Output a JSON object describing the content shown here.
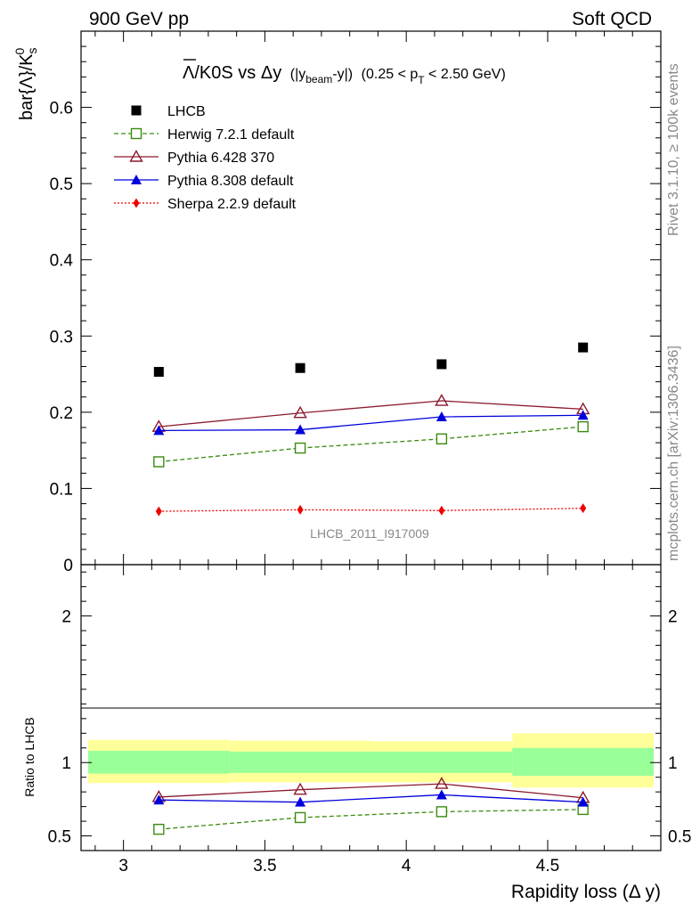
{
  "header": {
    "left": "900 GeV pp",
    "right": "Soft QCD"
  },
  "side": {
    "rivet": "Rivet 3.1.10, ≥ 100k events",
    "mcplots": "mcplots.cern.ch [arXiv:1306.3436]"
  },
  "watermark": "LHCB_2011_I917009",
  "chart_data": [
    {
      "type": "scatter",
      "title_main": "Λ/K0S vs Δy",
      "title_sel_prefix": "(|y",
      "title_sel_sub": "beam",
      "title_sel_suffix": "-y|)",
      "title_range": "(0.25 < p",
      "title_range_sub": "T",
      "title_range_suffix": " < 2.50 GeV)",
      "ylabel": "bar{Λ}/K",
      "ylabel_sup": "0",
      "ylabel_sub": "s",
      "ylim": [
        0,
        0.7
      ],
      "xlim": [
        2.85,
        4.9
      ],
      "yticks": [
        "0",
        "0.1",
        "0.2",
        "0.3",
        "0.4",
        "0.5",
        "0.6"
      ],
      "x": [
        3.125,
        3.625,
        4.125,
        4.625
      ],
      "series": [
        {
          "name": "LHCB",
          "color": "#000000",
          "marker": "square-filled",
          "line": "none",
          "values": [
            0.253,
            0.258,
            0.263,
            0.285
          ]
        },
        {
          "name": "Herwig 7.2.1 default",
          "color": "#3a8a0e",
          "marker": "square-open",
          "line": "dashed",
          "values": [
            0.135,
            0.153,
            0.165,
            0.181
          ]
        },
        {
          "name": "Pythia 6.428 370",
          "color": "#8b1a2e",
          "marker": "triangle-open",
          "line": "solid",
          "values": [
            0.181,
            0.199,
            0.215,
            0.204
          ]
        },
        {
          "name": "Pythia 8.308 default",
          "color": "#0000dd",
          "marker": "triangle-filled",
          "line": "solid",
          "values": [
            0.176,
            0.177,
            0.194,
            0.196
          ]
        },
        {
          "name": "Sherpa 2.2.9 default",
          "color": "#ee0000",
          "marker": "diamond-filled",
          "line": "dotted",
          "values": [
            0.07,
            0.072,
            0.071,
            0.074
          ]
        }
      ],
      "legend_placement": "top-left"
    },
    {
      "type": "scatter",
      "ylabel": "Ratio to LHCB",
      "xlabel": "Rapidity loss (Δ y)",
      "ylim": [
        0.4,
        2.35
      ],
      "ytick_labels": [
        "0.5",
        "1",
        "2"
      ],
      "ytick_values": [
        0.5,
        1,
        2
      ],
      "xticks": [
        "3",
        "3.5",
        "4",
        "4.5"
      ],
      "xtick_values": [
        3,
        3.5,
        4,
        4.5
      ],
      "x": [
        3.125,
        3.625,
        4.125,
        4.625
      ],
      "bands": [
        {
          "x0": 2.875,
          "x1": 3.375,
          "stat": [
            0.925,
            1.08
          ],
          "total": [
            0.86,
            1.155
          ]
        },
        {
          "x0": 3.375,
          "x1": 3.875,
          "stat": [
            0.93,
            1.075
          ],
          "total": [
            0.865,
            1.15
          ]
        },
        {
          "x0": 3.875,
          "x1": 4.375,
          "stat": [
            0.93,
            1.075
          ],
          "total": [
            0.865,
            1.145
          ]
        },
        {
          "x0": 4.375,
          "x1": 4.875,
          "stat": [
            0.91,
            1.1
          ],
          "total": [
            0.83,
            1.2
          ]
        }
      ],
      "band_colors": {
        "stat": "#99ff99",
        "total": "#ffff99"
      },
      "series": [
        {
          "name": "Herwig 7.2.1 default",
          "color": "#3a8a0e",
          "marker": "square-open",
          "line": "dashed",
          "values": [
            0.545,
            0.625,
            0.665,
            0.68
          ]
        },
        {
          "name": "Pythia 6.428 370",
          "color": "#8b1a2e",
          "marker": "triangle-open",
          "line": "solid",
          "values": [
            0.765,
            0.815,
            0.855,
            0.76
          ]
        },
        {
          "name": "Pythia 8.308 default",
          "color": "#0000dd",
          "marker": "triangle-filled",
          "line": "solid",
          "values": [
            0.745,
            0.73,
            0.78,
            0.73
          ]
        }
      ]
    }
  ]
}
